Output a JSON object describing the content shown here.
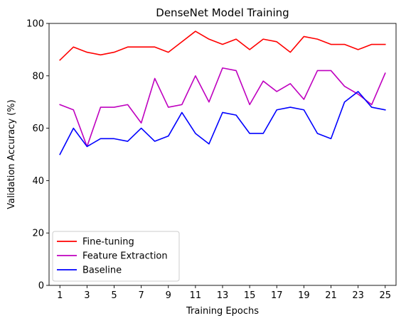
{
  "chart_data": {
    "type": "line",
    "title": "DenseNet Model Training",
    "xlabel": "Training Epochs",
    "ylabel": "Validation Accuracy (%)",
    "x": [
      1,
      2,
      3,
      4,
      5,
      6,
      7,
      8,
      9,
      10,
      11,
      12,
      13,
      14,
      15,
      16,
      17,
      18,
      19,
      20,
      21,
      22,
      23,
      24,
      25
    ],
    "xlim": [
      0.2,
      25.8
    ],
    "ylim": [
      0,
      100
    ],
    "xticks": [
      1,
      3,
      5,
      7,
      9,
      11,
      13,
      15,
      17,
      19,
      21,
      23,
      25
    ],
    "yticks": [
      0,
      20,
      40,
      60,
      80,
      100
    ],
    "grid": false,
    "legend_position": "lower-left",
    "series": [
      {
        "name": "Fine-tuning",
        "color": "#ff0000",
        "values": [
          86,
          91,
          89,
          88,
          89,
          91,
          91,
          91,
          89,
          93,
          97,
          94,
          92,
          94,
          90,
          94,
          93,
          89,
          95,
          94,
          92,
          92,
          90,
          92,
          92
        ]
      },
      {
        "name": "Feature Extraction",
        "color": "#bf00bf",
        "values": [
          69,
          67,
          53,
          68,
          68,
          69,
          62,
          79,
          68,
          69,
          80,
          70,
          83,
          82,
          69,
          78,
          74,
          77,
          71,
          82,
          82,
          76,
          73,
          69,
          81
        ]
      },
      {
        "name": "Baseline",
        "color": "#0000ff",
        "values": [
          50,
          60,
          53,
          56,
          56,
          55,
          60,
          55,
          57,
          66,
          58,
          54,
          66,
          65,
          58,
          58,
          67,
          68,
          67,
          58,
          56,
          70,
          74,
          68,
          67
        ]
      }
    ]
  }
}
